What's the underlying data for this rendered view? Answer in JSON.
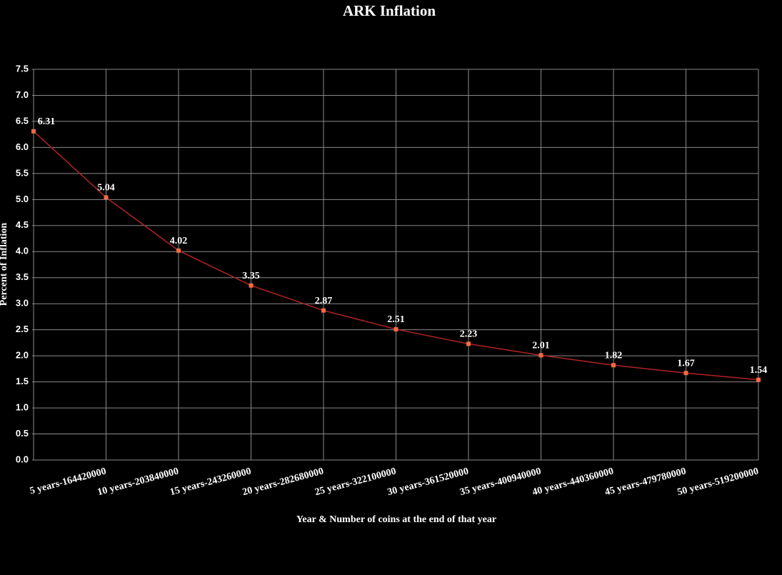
{
  "chart_data": {
    "type": "line",
    "title": "ARK Inflation",
    "x_label": "Year & Number of coins at the end of that year",
    "y_label": "Percent of Inflation",
    "categories": [
      null,
      "5 years-164420000",
      "10 years-203840000",
      "15 years-243260000",
      "20 years-282680000",
      "25 years-322100000",
      "30 years-361520000",
      "35 years-400940000",
      "40 years-440360000",
      "45 years-479780000",
      "50 years-519200000"
    ],
    "series": [
      {
        "name": "Percent of Inflation",
        "color": "#b22222",
        "marker_color": "#f26b45",
        "values": [
          6.31,
          5.04,
          4.02,
          3.35,
          2.87,
          2.51,
          2.23,
          2.01,
          1.82,
          1.67,
          1.54
        ]
      }
    ],
    "ylim": [
      0,
      7.5
    ],
    "yticks": [
      {
        "value": 0,
        "label": "0.0"
      },
      0.5,
      {
        "value": 1,
        "label": "1.0"
      },
      1.5,
      {
        "value": 2,
        "label": "2.0"
      },
      2.5,
      {
        "value": 3,
        "label": "3.0"
      },
      3.5,
      {
        "value": 4,
        "label": "4.0"
      },
      4.5,
      {
        "value": 5,
        "label": "5.0"
      },
      5.5,
      {
        "value": 6,
        "label": "6.0"
      },
      6.5,
      {
        "value": 7,
        "label": "7.0"
      },
      7.5
    ],
    "grid": true
  }
}
